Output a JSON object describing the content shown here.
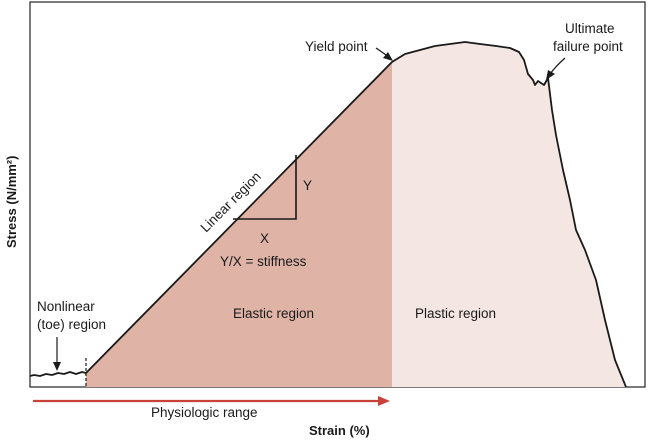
{
  "axes": {
    "x_title": "Strain (%)",
    "y_title": "Stress (N/mm²)"
  },
  "regions": {
    "elastic": "Elastic region",
    "plastic": "Plastic region",
    "linear": "Linear region",
    "toe_line1": "Nonlinear",
    "toe_line2": "(toe) region"
  },
  "annotations": {
    "yield_point": "Yield point",
    "ultimate_line1": "Ultimate",
    "ultimate_line2": "failure point",
    "stiffness": "Y/X = stiffness",
    "triangle_x": "X",
    "triangle_y": "Y",
    "physiologic_range": "Physiologic range"
  },
  "colors": {
    "elastic_fill": "#dfb4a6",
    "plastic_fill": "#f4e6e2",
    "range_arrow": "#c8423a",
    "frame": "#222222"
  }
}
